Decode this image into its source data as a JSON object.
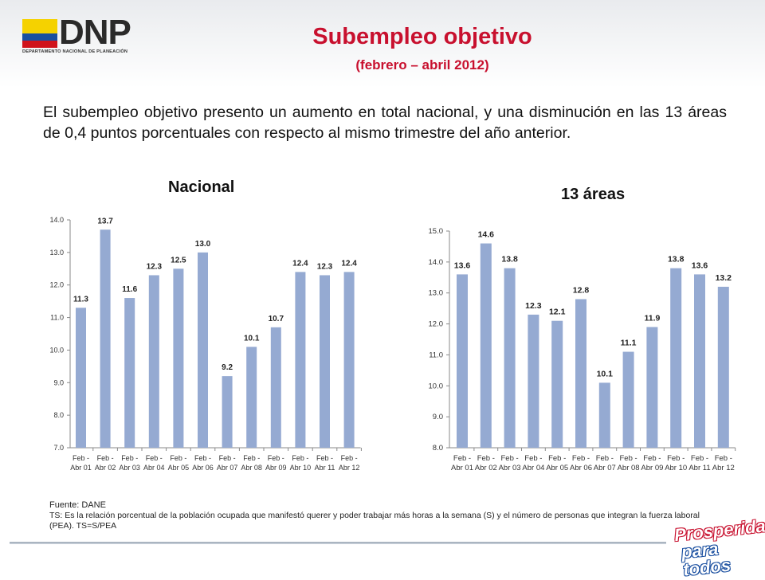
{
  "header": {
    "logo_text": "DNP",
    "logo_subtitle": "DEPARTAMENTO NACIONAL DE PLANEACIÓN",
    "title": "Subempleo objetivo",
    "subtitle": "(febrero – abril 2012)"
  },
  "body_text": "El subempleo objetivo presento un aumento en total nacional, y una disminución en las 13 áreas de 0,4 puntos porcentuales con respecto al mismo trimestre del año anterior.",
  "colors": {
    "bar": "#95aad2",
    "title": "#c8102e"
  },
  "chart_data": [
    {
      "type": "bar",
      "title": "Nacional",
      "categories": [
        [
          "Feb -",
          "Abr 01"
        ],
        [
          "Feb -",
          "Abr 02"
        ],
        [
          "Feb -",
          "Abr 03"
        ],
        [
          "Feb -",
          "Abr 04"
        ],
        [
          "Feb -",
          "Abr 05"
        ],
        [
          "Feb -",
          "Abr 06"
        ],
        [
          "Feb -",
          "Abr 07"
        ],
        [
          "Feb -",
          "Abr 08"
        ],
        [
          "Feb -",
          "Abr 09"
        ],
        [
          "Feb -",
          "Abr 10"
        ],
        [
          "Feb -",
          "Abr 11"
        ],
        [
          "Feb -",
          "Abr 12"
        ]
      ],
      "values": [
        11.3,
        13.7,
        11.6,
        12.3,
        12.5,
        13.0,
        9.2,
        10.1,
        10.7,
        12.4,
        12.3,
        12.4
      ],
      "value_labels": [
        "11.3",
        "13.7",
        "11.6",
        "12.3",
        "12.5",
        "13.0",
        "9.2",
        "10.1",
        "10.7",
        "12.4",
        "12.3",
        "12.4"
      ],
      "yticks": [
        "7.0",
        "8.0",
        "9.0",
        "10.0",
        "11.0",
        "12.0",
        "13.0",
        "14.0"
      ],
      "ylim": [
        7,
        14
      ],
      "xlabel": "",
      "ylabel": "",
      "grid": false
    },
    {
      "type": "bar",
      "title": "13 áreas",
      "categories": [
        [
          "Feb -",
          "Abr 01"
        ],
        [
          "Feb -",
          "Abr 02"
        ],
        [
          "Feb -",
          "Abr 03"
        ],
        [
          "Feb -",
          "Abr 04"
        ],
        [
          "Feb -",
          "Abr 05"
        ],
        [
          "Feb -",
          "Abr 06"
        ],
        [
          "Feb -",
          "Abr 07"
        ],
        [
          "Feb -",
          "Abr 08"
        ],
        [
          "Feb -",
          "Abr 09"
        ],
        [
          "Feb -",
          "Abr 10"
        ],
        [
          "Feb -",
          "Abr 11"
        ],
        [
          "Feb -",
          "Abr 12"
        ]
      ],
      "values": [
        13.6,
        14.6,
        13.8,
        12.3,
        12.1,
        12.8,
        10.1,
        11.1,
        11.9,
        13.8,
        13.6,
        13.2
      ],
      "value_labels": [
        "13.6",
        "14.6",
        "13.8",
        "12.3",
        "12.1",
        "12.8",
        "10.1",
        "11.1",
        "11.9",
        "13.8",
        "13.6",
        "13.2"
      ],
      "yticks": [
        "8.0",
        "9.0",
        "10.0",
        "11.0",
        "12.0",
        "13.0",
        "14.0",
        "15.0"
      ],
      "ylim": [
        8,
        15
      ],
      "xlabel": "",
      "ylabel": "",
      "grid": false
    }
  ],
  "footer": {
    "source": "Fuente: DANE",
    "note": "TS:  Es la relación porcentual de la población ocupada que manifestó querer y poder trabajar más horas a la semana (S) y el número de personas que integran la fuerza laboral (PEA). TS=S/PEA"
  },
  "brand": {
    "line1": "Prosperidad",
    "line2": "para todos"
  }
}
